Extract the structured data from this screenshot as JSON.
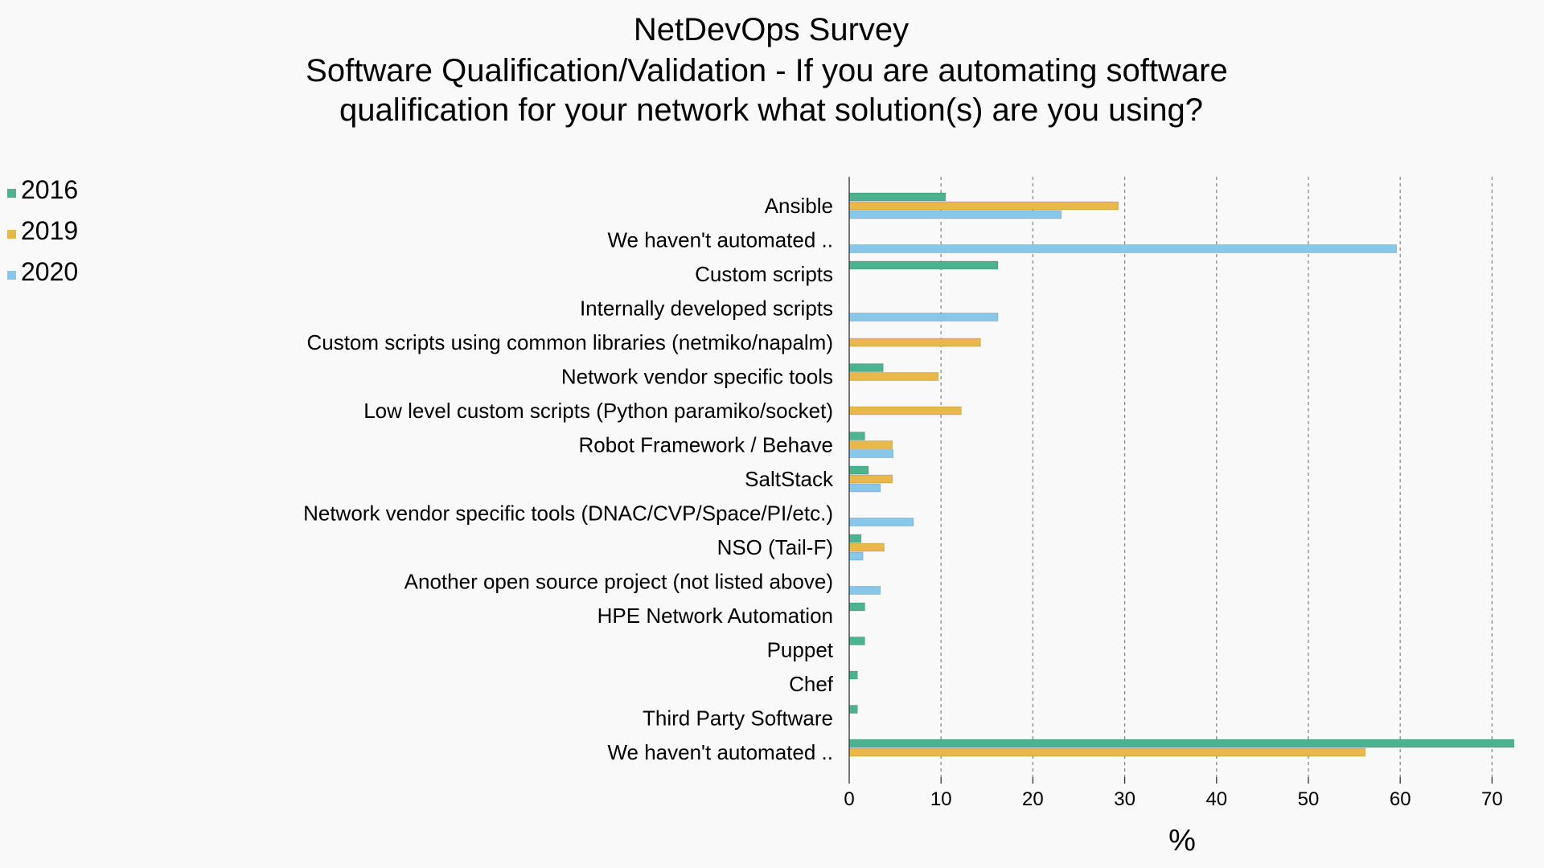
{
  "chart_data": {
    "type": "bar",
    "orientation": "horizontal",
    "title": "NetDevOps Survey",
    "subtitle": "Software Qualification/Validation - If you are automating software qualification for your network what solution(s) are you using?",
    "xlabel": "%",
    "ylabel": "",
    "xlim": [
      0,
      73
    ],
    "xticks": [
      0,
      10,
      20,
      30,
      40,
      50,
      60,
      70
    ],
    "grid": true,
    "legend_position": "left",
    "categories": [
      "Ansible",
      "We haven't automated ..",
      "Custom scripts",
      "Internally developed scripts",
      "Custom scripts using common libraries (netmiko/napalm)",
      "Network vendor specific tools",
      "Low level custom scripts (Python paramiko/socket)",
      "Robot Framework / Behave",
      "SaltStack",
      "Network vendor specific tools (DNAC/CVP/Space/PI/etc.)",
      "NSO (Tail-F)",
      "Another open source project (not listed above)",
      "HPE Network Automation",
      "Puppet",
      "Chef",
      "Third Party Software",
      "We haven't automated .."
    ],
    "series": [
      {
        "name": "2016",
        "color": "#4cb391",
        "values": [
          10.5,
          0,
          16.2,
          0,
          0,
          3.7,
          0,
          1.7,
          2.1,
          0,
          1.3,
          0,
          1.7,
          1.7,
          0.9,
          0.9,
          72.4
        ]
      },
      {
        "name": "2019",
        "color": "#e8b84a",
        "values": [
          29.3,
          0,
          0,
          0,
          14.3,
          9.7,
          12.2,
          4.7,
          4.7,
          0,
          3.8,
          0,
          0,
          0,
          0,
          0,
          56.2
        ]
      },
      {
        "name": "2020",
        "color": "#86c7ea",
        "values": [
          23.1,
          59.6,
          0,
          16.2,
          0,
          0,
          0,
          4.8,
          3.4,
          7.0,
          1.5,
          3.4,
          0,
          0,
          0,
          0,
          0
        ]
      }
    ]
  }
}
